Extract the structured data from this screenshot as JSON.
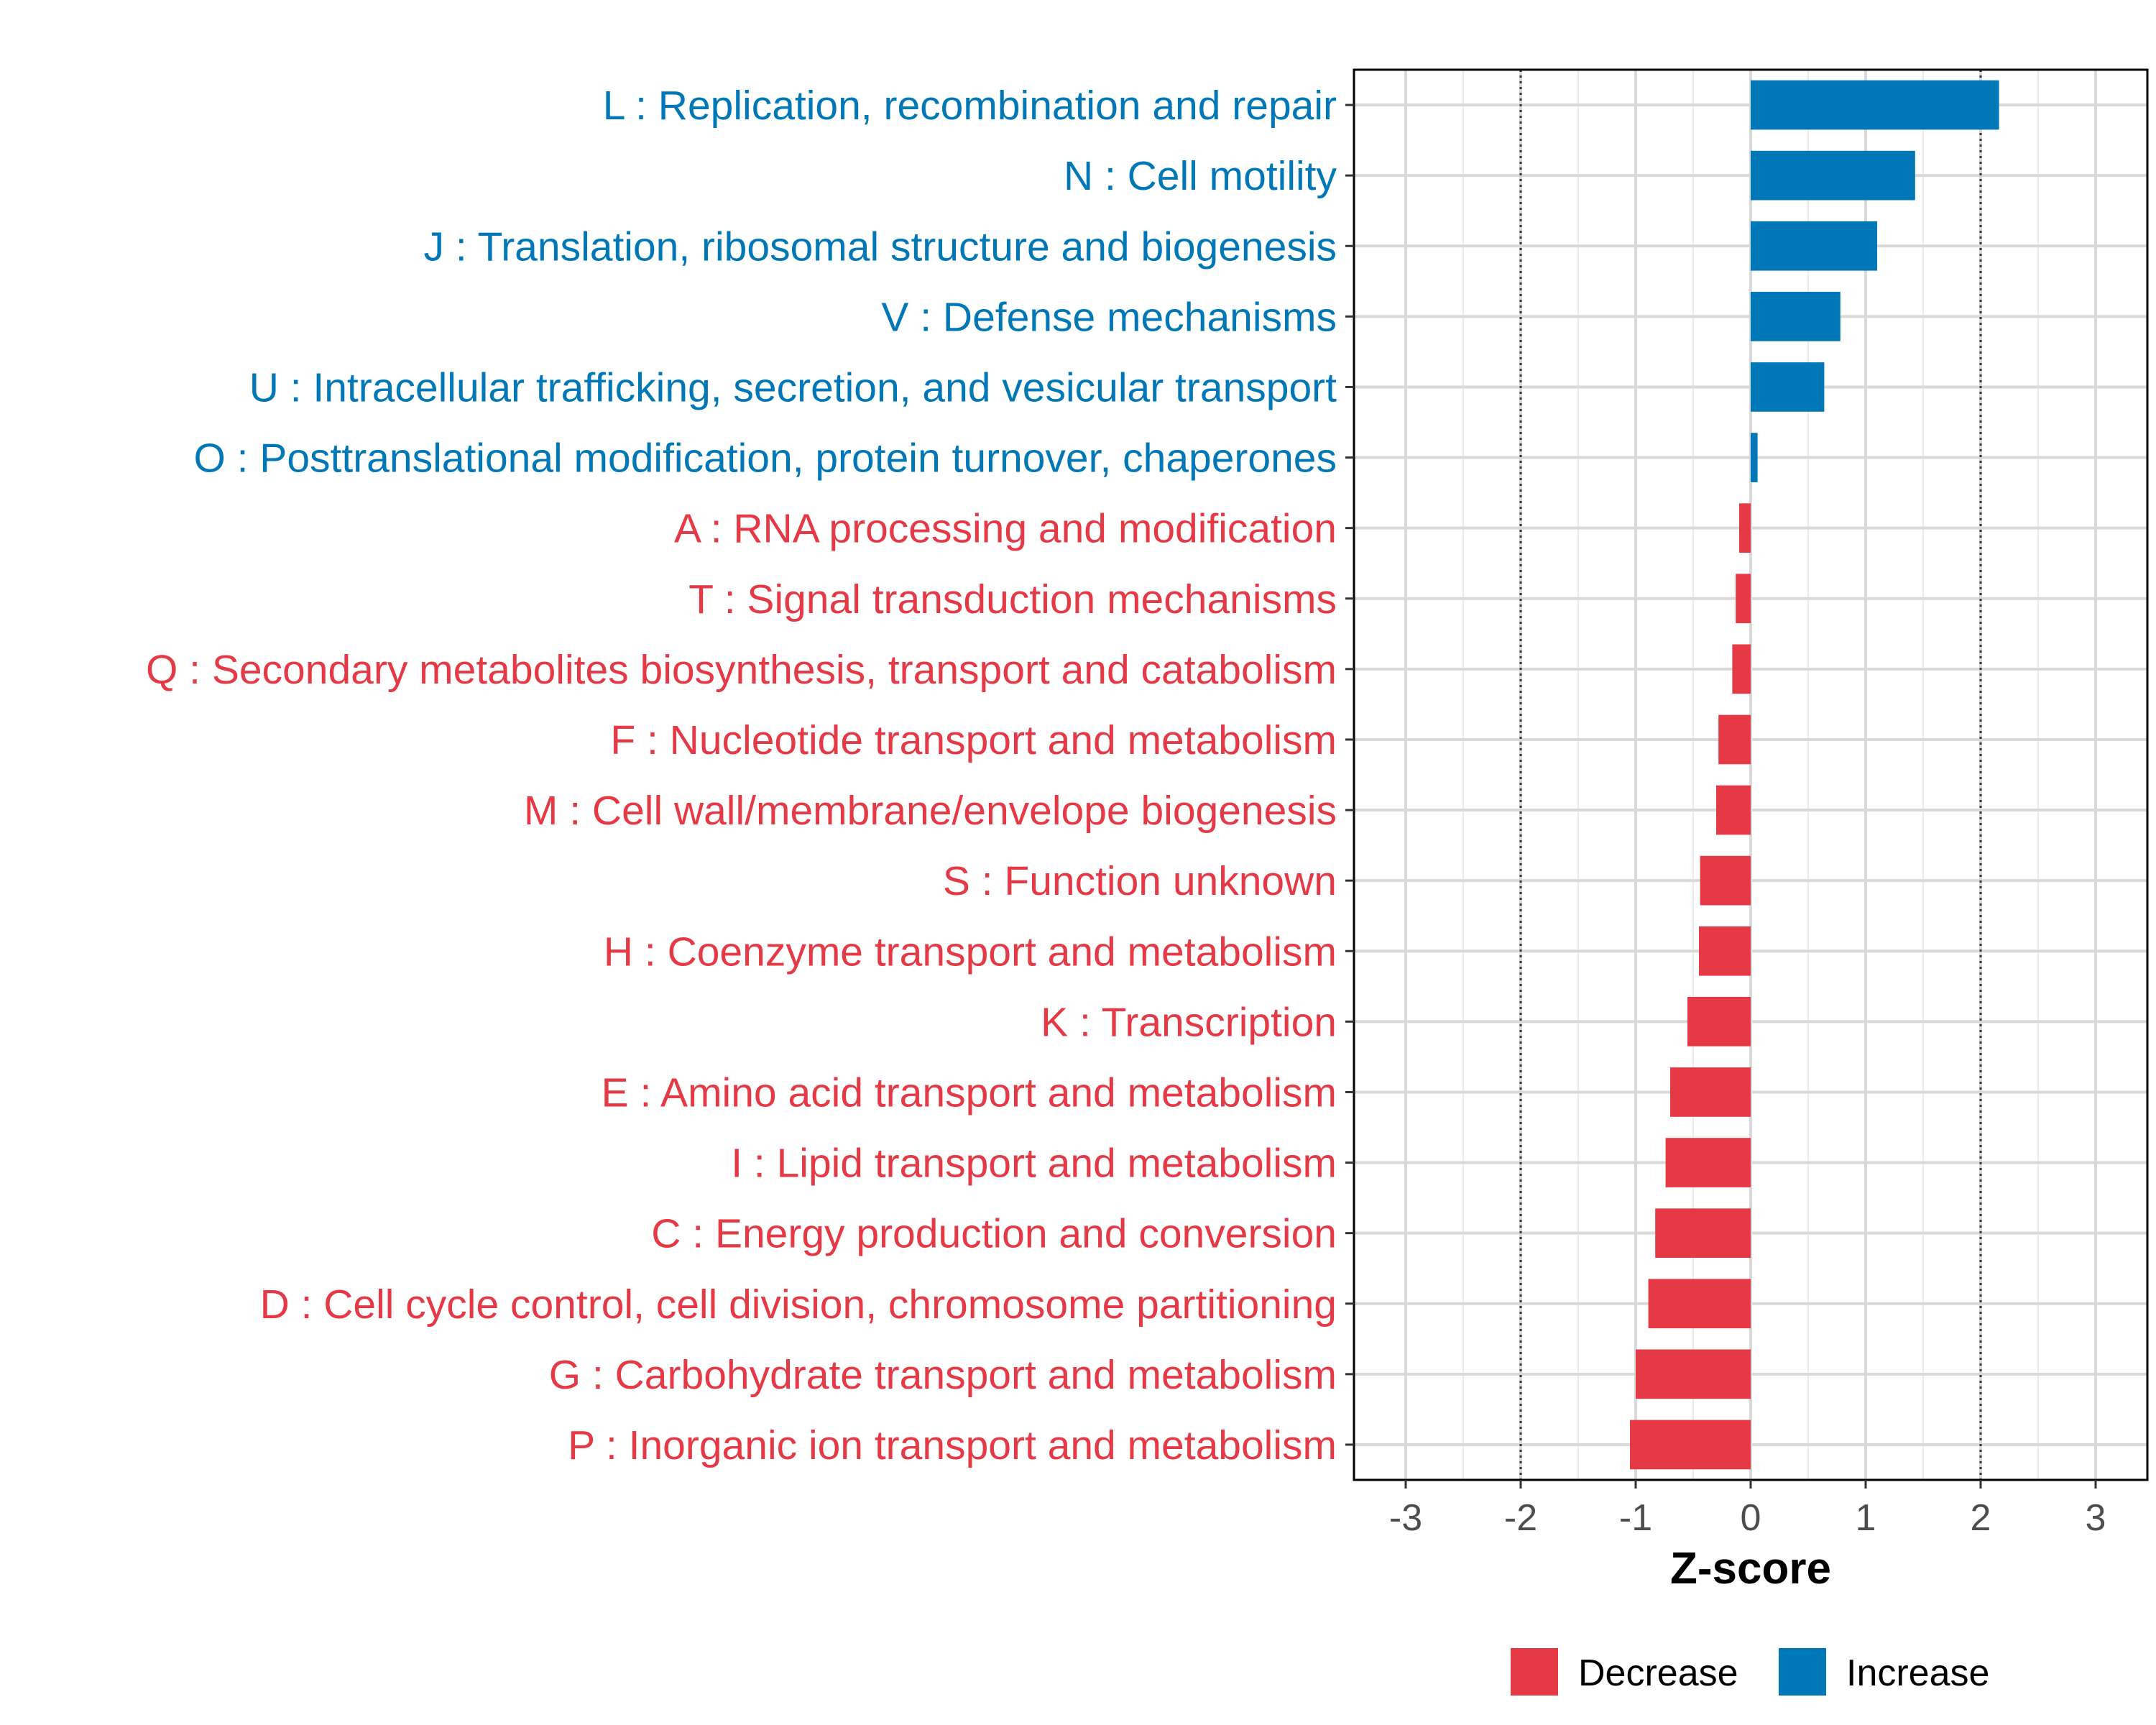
{
  "chart_data": {
    "type": "bar",
    "orientation": "horizontal",
    "title": "",
    "xlabel": "Z-score",
    "ylabel": "",
    "xlim": [
      -3.45,
      3.45
    ],
    "x_ticks": [
      -3,
      -2,
      -1,
      0,
      1,
      2,
      3
    ],
    "x_tick_labels": [
      "-3",
      "-2",
      "-1",
      "0",
      "1",
      "2",
      "3"
    ],
    "reference_lines": [
      -2,
      2
    ],
    "grid": true,
    "legend_position": "bottom",
    "legend": [
      {
        "name": "Decrease",
        "color": "#e63946"
      },
      {
        "name": "Increase",
        "color": "#0077b6"
      }
    ],
    "categories": [
      "L : Replication, recombination and repair",
      "N : Cell motility",
      "J : Translation, ribosomal structure and biogenesis",
      "V : Defense mechanisms",
      "U : Intracellular trafficking, secretion, and vesicular transport",
      "O : Posttranslational modification, protein turnover, chaperones",
      "A : RNA processing and modification",
      "T : Signal transduction mechanisms",
      "Q : Secondary metabolites biosynthesis, transport and catabolism",
      "F : Nucleotide transport and metabolism",
      "M : Cell wall/membrane/envelope biogenesis",
      "S : Function unknown",
      "H : Coenzyme transport and metabolism",
      "K : Transcription",
      "E : Amino acid transport and metabolism",
      "I : Lipid transport and metabolism",
      "C : Energy production and conversion",
      "D : Cell cycle control, cell division, chromosome partitioning",
      "G : Carbohydrate transport and metabolism",
      "P : Inorganic ion transport and metabolism"
    ],
    "values": [
      2.16,
      1.43,
      1.1,
      0.78,
      0.64,
      0.06,
      -0.1,
      -0.13,
      -0.16,
      -0.28,
      -0.3,
      -0.44,
      -0.45,
      -0.55,
      -0.7,
      -0.74,
      -0.83,
      -0.89,
      -1.0,
      -1.05
    ],
    "groups": [
      "Increase",
      "Increase",
      "Increase",
      "Increase",
      "Increase",
      "Increase",
      "Decrease",
      "Decrease",
      "Decrease",
      "Decrease",
      "Decrease",
      "Decrease",
      "Decrease",
      "Decrease",
      "Decrease",
      "Decrease",
      "Decrease",
      "Decrease",
      "Decrease",
      "Decrease"
    ]
  }
}
